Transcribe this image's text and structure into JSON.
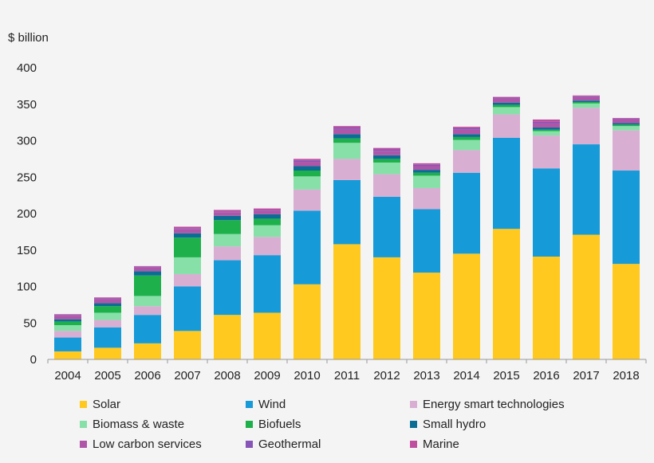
{
  "chart_data": {
    "type": "bar",
    "stacked": true,
    "ylabel": "$ billion",
    "ylim": [
      0,
      400
    ],
    "yticks": [
      0,
      50,
      100,
      150,
      200,
      250,
      300,
      350,
      400
    ],
    "grid": false,
    "legend_position": "bottom",
    "categories": [
      "2004",
      "2005",
      "2006",
      "2007",
      "2008",
      "2009",
      "2010",
      "2011",
      "2012",
      "2013",
      "2014",
      "2015",
      "2016",
      "2017",
      "2018"
    ],
    "series": [
      {
        "name": "Solar",
        "color": "#ffc91f",
        "values": [
          11,
          16,
          22,
          39,
          61,
          64,
          103,
          158,
          140,
          119,
          145,
          179,
          141,
          171,
          131
        ]
      },
      {
        "name": "Wind",
        "color": "#169ad8",
        "values": [
          19,
          28,
          39,
          61,
          75,
          79,
          101,
          88,
          83,
          87,
          111,
          125,
          121,
          124,
          128
        ]
      },
      {
        "name": "Energy smart technologies",
        "color": "#d9aed3",
        "values": [
          9,
          10,
          12,
          17,
          19,
          25,
          29,
          29,
          31,
          29,
          31,
          32,
          45,
          50,
          55
        ]
      },
      {
        "name": "Biomass & waste",
        "color": "#86e0a7",
        "values": [
          8,
          10,
          14,
          23,
          17,
          16,
          18,
          22,
          16,
          17,
          14,
          10,
          6,
          6,
          6
        ]
      },
      {
        "name": "Biofuels",
        "color": "#1db04b",
        "values": [
          5,
          9,
          28,
          27,
          19,
          9,
          8,
          6,
          5,
          4,
          4,
          3,
          2,
          2,
          2
        ]
      },
      {
        "name": "Small hydro",
        "color": "#0b6d93",
        "values": [
          3,
          4,
          6,
          6,
          6,
          6,
          6,
          6,
          5,
          4,
          4,
          3,
          3,
          2,
          2
        ]
      },
      {
        "name": "Low carbon services",
        "color": "#b056a8",
        "values": [
          5,
          6,
          5,
          6,
          5,
          5,
          6,
          7,
          6,
          5,
          6,
          6,
          6,
          5,
          5
        ]
      },
      {
        "name": "Geothermal",
        "color": "#8755b7",
        "values": [
          1,
          1,
          1,
          1,
          1,
          1,
          2,
          2,
          2,
          2,
          2,
          1,
          2,
          1,
          1
        ]
      },
      {
        "name": "Marine",
        "color": "#c04e9e",
        "values": [
          1,
          1,
          1,
          2,
          2,
          2,
          2,
          2,
          2,
          2,
          2,
          1,
          3,
          1,
          1
        ]
      }
    ]
  }
}
